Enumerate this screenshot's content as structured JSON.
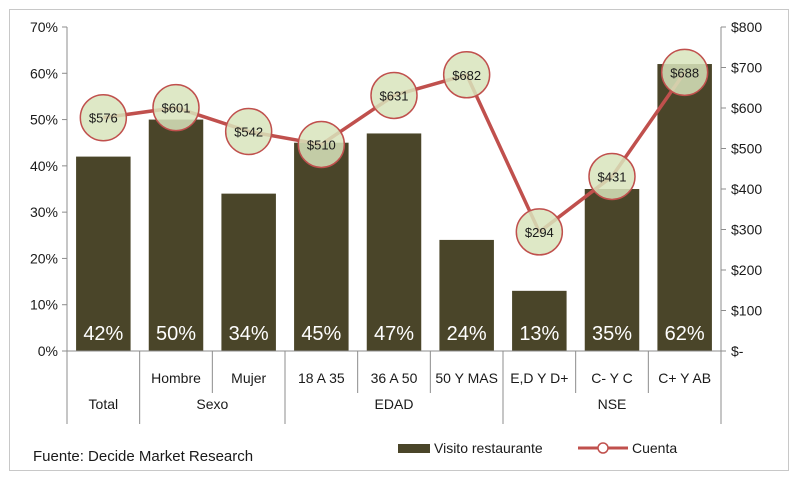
{
  "chart_data": {
    "type": "bar",
    "x_groups": [
      {
        "name": "Total",
        "categories": [
          ""
        ]
      },
      {
        "name": "Sexo",
        "categories": [
          "Hombre",
          "Mujer"
        ]
      },
      {
        "name": "EDAD",
        "categories": [
          "18 A 35",
          "36 A 50",
          "50 Y MAS"
        ]
      },
      {
        "name": "NSE",
        "categories": [
          "E,D Y D+",
          "C- Y C",
          "C+ Y AB"
        ]
      }
    ],
    "series": [
      {
        "name": "Visito restaurante",
        "type": "bar",
        "axis": "left",
        "values": [
          42,
          50,
          34,
          45,
          47,
          24,
          13,
          35,
          62
        ],
        "labels": [
          "42%",
          "50%",
          "34%",
          "45%",
          "47%",
          "24%",
          "13%",
          "35%",
          "62%"
        ]
      },
      {
        "name": "Cuenta",
        "type": "line",
        "axis": "right",
        "values": [
          576,
          601,
          542,
          510,
          631,
          682,
          294,
          431,
          688
        ],
        "labels": [
          "$576",
          "$601",
          "$542",
          "$510",
          "$631",
          "$682",
          "$294",
          "$431",
          "$688"
        ]
      }
    ],
    "left_axis": {
      "min": 0,
      "max": 70,
      "step": 10,
      "tick_labels": [
        "0%",
        "10%",
        "20%",
        "30%",
        "40%",
        "50%",
        "60%",
        "70%"
      ]
    },
    "right_axis": {
      "min": 0,
      "max": 800,
      "step": 100,
      "tick_labels": [
        "$-",
        "$100",
        "$200",
        "$300",
        "$400",
        "$500",
        "$600",
        "$700",
        "$800"
      ]
    },
    "grid": false,
    "legend_position": "bottom-right",
    "colors": {
      "bar": "#4a4529",
      "line": "#c0504d",
      "marker_fill": "#d8e4bc",
      "marker_stroke": "#c0504d",
      "axis": "#8c8c8c"
    }
  },
  "source": "Fuente:  Decide  Market  Research"
}
